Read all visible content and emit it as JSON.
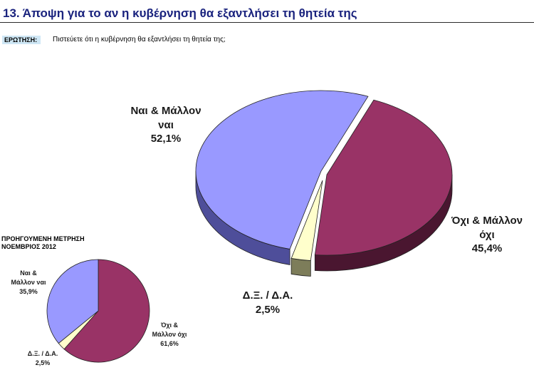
{
  "header": {
    "title": "13.   Άποψη για το αν η κυβέρνηση θα εξαντλήσει τη θητεία της",
    "question_label": "ΕΡΩΤΗΣΗ:",
    "question_text": "Πιστεύετε ότι η κυβέρνηση θα εξαντλήσει τη θητεία της;"
  },
  "chart_data": [
    {
      "type": "pie",
      "title": "",
      "slices": [
        {
          "label_lines": [
            "Ναι & Μάλλον",
            "ναι"
          ],
          "value": 52.1,
          "value_label": "52,1%",
          "color": "#9999ff",
          "side_color": "#4e4e9a"
        },
        {
          "label_lines": [
            "Όχι & Μάλλον",
            "όχι"
          ],
          "value": 45.4,
          "value_label": "45,4%",
          "color": "#993366",
          "side_color": "#4a1630"
        },
        {
          "label_lines": [
            "Δ.Ξ. / Δ.Α."
          ],
          "value": 2.5,
          "value_label": "2,5%",
          "color": "#ffffcc",
          "side_color": "#7d7d5a"
        }
      ]
    },
    {
      "type": "pie",
      "title_lines": [
        "ΠΡΟΗΓΟΥΜΕΝΗ ΜΕΤΡΗΣΗ",
        "ΝΟΕΜΒΡΙΟΣ 2012"
      ],
      "slices": [
        {
          "label_lines": [
            "Ναι &",
            "Μάλλον ναι"
          ],
          "value": 35.9,
          "value_label": "35,9%",
          "color": "#9999ff"
        },
        {
          "label_lines": [
            "Όχι &",
            "Μάλλον όχι"
          ],
          "value": 61.6,
          "value_label": "61,6%",
          "color": "#993366"
        },
        {
          "label_lines": [
            "Δ.Ξ. / Δ.Α."
          ],
          "value": 2.5,
          "value_label": "2,5%",
          "color": "#ffffcc"
        }
      ]
    }
  ]
}
